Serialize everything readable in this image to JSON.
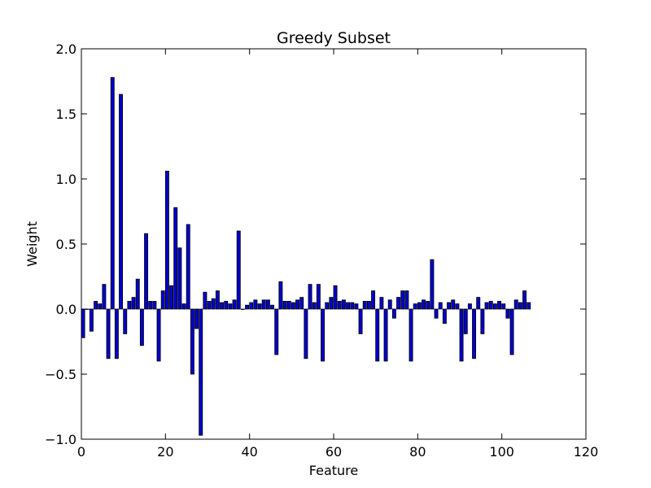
{
  "chart_data": {
    "type": "bar",
    "title": "Greedy Subset",
    "xlabel": "Feature",
    "ylabel": "Weight",
    "xlim": [
      0,
      120
    ],
    "ylim": [
      -1.0,
      2.0
    ],
    "xticks": [
      0,
      20,
      40,
      60,
      80,
      100,
      120
    ],
    "yticks": [
      -1.0,
      -0.5,
      0.0,
      0.5,
      1.0,
      1.5,
      2.0
    ],
    "xtick_labels": [
      "0",
      "20",
      "40",
      "60",
      "80",
      "100",
      "120"
    ],
    "ytick_labels": [
      "−1.0",
      "−0.5",
      "0.0",
      "0.5",
      "1.0",
      "1.5",
      "2.0"
    ],
    "bar_color": "#0000cc",
    "bar_edge_color": "#000000",
    "grid": false,
    "x": [
      0,
      1,
      2,
      3,
      4,
      5,
      6,
      7,
      8,
      9,
      10,
      11,
      12,
      13,
      14,
      15,
      16,
      17,
      18,
      19,
      20,
      21,
      22,
      23,
      24,
      25,
      26,
      27,
      28,
      29,
      30,
      31,
      32,
      33,
      34,
      35,
      36,
      37,
      38,
      39,
      40,
      41,
      42,
      43,
      44,
      45,
      46,
      47,
      48,
      49,
      50,
      51,
      52,
      53,
      54,
      55,
      56,
      57,
      58,
      59,
      60,
      61,
      62,
      63,
      64,
      65,
      66,
      67,
      68,
      69,
      70,
      71,
      72,
      73,
      74,
      75,
      76,
      77,
      78,
      79,
      80,
      81,
      82,
      83,
      84,
      85,
      86,
      87,
      88,
      89,
      90,
      91,
      92,
      93,
      94,
      95,
      96,
      97,
      98,
      99,
      100,
      101,
      102,
      103,
      104,
      105,
      106
    ],
    "values": [
      -0.22,
      0.0,
      -0.17,
      0.06,
      0.04,
      0.19,
      -0.38,
      1.78,
      -0.38,
      1.65,
      -0.19,
      0.06,
      0.09,
      0.23,
      -0.28,
      0.58,
      0.06,
      0.06,
      -0.4,
      0.14,
      1.06,
      0.18,
      0.78,
      0.47,
      0.04,
      0.65,
      -0.5,
      -0.15,
      -0.97,
      0.13,
      0.06,
      0.08,
      0.14,
      0.05,
      0.06,
      0.04,
      0.07,
      0.6,
      0.0,
      0.03,
      0.05,
      0.07,
      0.04,
      0.07,
      0.07,
      0.03,
      -0.35,
      0.21,
      0.06,
      0.06,
      0.05,
      0.07,
      0.09,
      -0.38,
      0.19,
      0.05,
      0.19,
      -0.4,
      0.05,
      0.09,
      0.18,
      0.06,
      0.07,
      0.05,
      0.05,
      0.04,
      -0.19,
      0.06,
      0.06,
      0.14,
      -0.4,
      0.09,
      -0.4,
      0.07,
      -0.07,
      0.09,
      0.14,
      0.14,
      -0.4,
      0.04,
      0.05,
      0.07,
      0.06,
      0.38,
      -0.07,
      0.05,
      -0.11,
      0.05,
      0.07,
      0.04,
      -0.4,
      -0.19,
      0.04,
      -0.38,
      0.09,
      -0.19,
      0.05,
      0.06,
      0.04,
      0.06,
      0.04,
      -0.07,
      -0.35,
      0.07,
      0.05,
      0.14,
      0.05
    ]
  }
}
